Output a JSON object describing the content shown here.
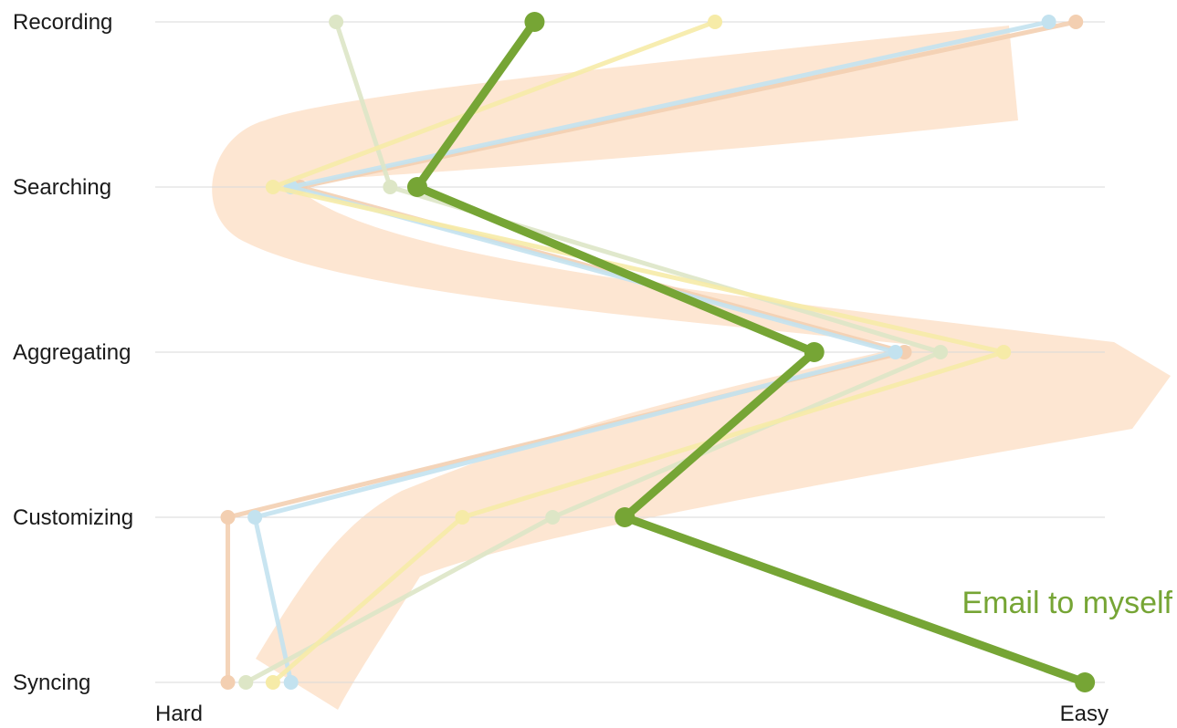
{
  "chart_data": {
    "type": "line",
    "orientation": "horizontal",
    "categories": [
      "Recording",
      "Searching",
      "Aggregating",
      "Customizing",
      "Syncing"
    ],
    "x_axis": {
      "min_label": "Hard",
      "max_label": "Easy",
      "range": [
        0,
        1
      ]
    },
    "grid": true,
    "series": [
      {
        "color": "#f3cfb1",
        "values": [
          0.98,
          0.12,
          0.79,
          0.04,
          0.04
        ],
        "emphasis": false
      },
      {
        "color": "#c3e2ef",
        "values": [
          0.95,
          0.11,
          0.78,
          0.07,
          0.11
        ],
        "emphasis": false
      },
      {
        "color": "#dde6c6",
        "values": [
          0.16,
          0.22,
          0.83,
          0.4,
          0.06
        ],
        "emphasis": false
      },
      {
        "color": "#f6eba7",
        "values": [
          0.58,
          0.09,
          0.9,
          0.3,
          0.09
        ],
        "emphasis": false
      },
      {
        "name": "Email to myself",
        "color": "#76a535",
        "values": [
          0.38,
          0.25,
          0.69,
          0.48,
          0.99
        ],
        "emphasis": true
      }
    ],
    "annotation": {
      "text": "Email to myself",
      "color": "#76a535"
    },
    "band_color": "#fde6d2"
  }
}
